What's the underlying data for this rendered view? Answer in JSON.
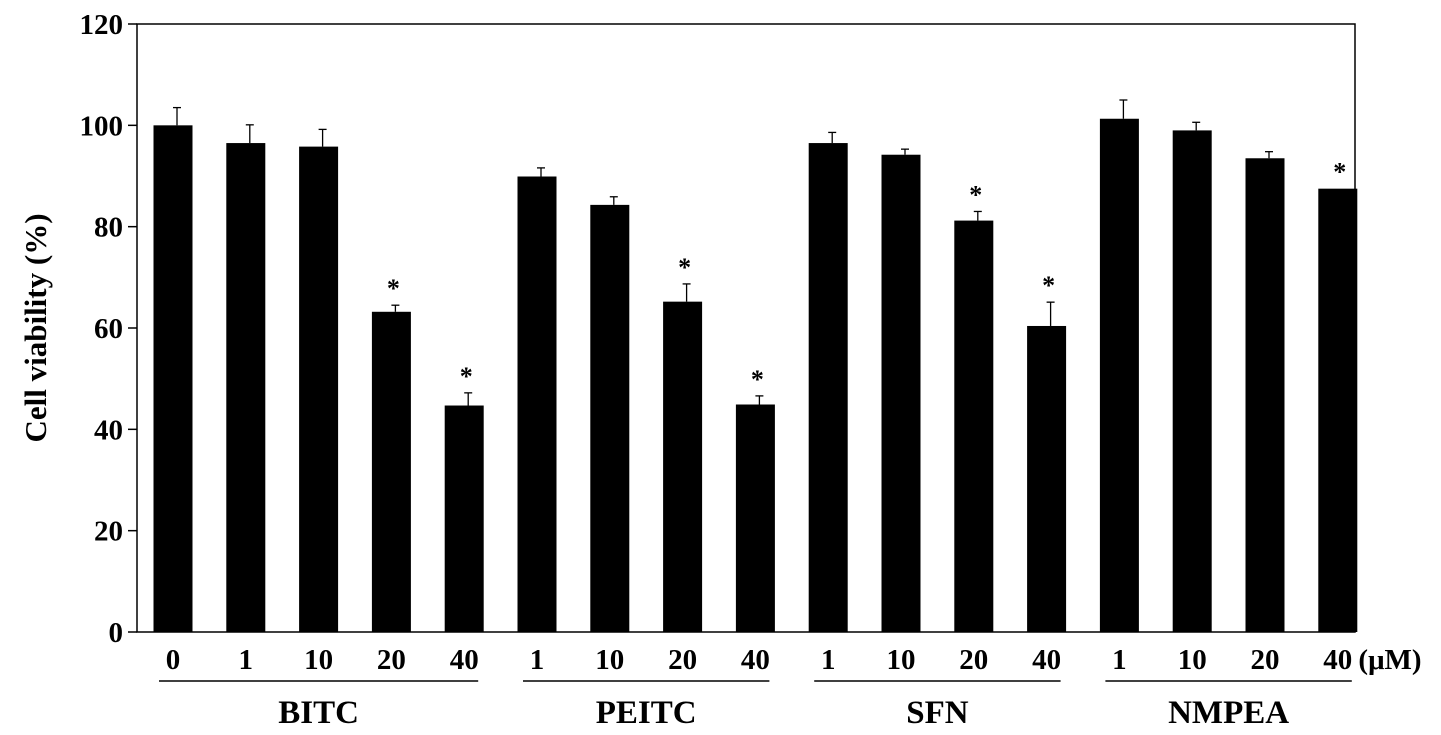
{
  "chart_data": {
    "type": "bar",
    "title": "",
    "ylabel": "Cell viability (%)",
    "xlabel": "",
    "x_unit_label": "(μM)",
    "ylim": [
      0,
      120
    ],
    "yticks": [
      "0",
      "20",
      "40",
      "60",
      "80",
      "100",
      "120"
    ],
    "grid": false,
    "legend": "none",
    "bar_color": "#000000",
    "groups": [
      {
        "name": "BITC",
        "bars": [
          {
            "dose": "0",
            "value": 100,
            "error": 3.5,
            "significant": false
          },
          {
            "dose": "1",
            "value": 96.5,
            "error": 3.6,
            "significant": false
          },
          {
            "dose": "10",
            "value": 95.8,
            "error": 3.4,
            "significant": false
          },
          {
            "dose": "20",
            "value": 63.2,
            "error": 1.3,
            "significant": true
          },
          {
            "dose": "40",
            "value": 44.7,
            "error": 2.5,
            "significant": true
          }
        ]
      },
      {
        "name": "PEITC",
        "bars": [
          {
            "dose": "1",
            "value": 89.9,
            "error": 1.7,
            "significant": false
          },
          {
            "dose": "10",
            "value": 84.3,
            "error": 1.6,
            "significant": false
          },
          {
            "dose": "20",
            "value": 65.2,
            "error": 3.5,
            "significant": true
          },
          {
            "dose": "40",
            "value": 44.9,
            "error": 1.7,
            "significant": true
          }
        ]
      },
      {
        "name": "SFN",
        "bars": [
          {
            "dose": "1",
            "value": 96.5,
            "error": 2.1,
            "significant": false
          },
          {
            "dose": "10",
            "value": 94.2,
            "error": 1.1,
            "significant": false
          },
          {
            "dose": "20",
            "value": 81.2,
            "error": 1.8,
            "significant": true
          },
          {
            "dose": "40",
            "value": 60.4,
            "error": 4.7,
            "significant": true
          }
        ]
      },
      {
        "name": "NMPEA",
        "bars": [
          {
            "dose": "1",
            "value": 101.3,
            "error": 3.7,
            "significant": false
          },
          {
            "dose": "10",
            "value": 99.0,
            "error": 1.6,
            "significant": false
          },
          {
            "dose": "20",
            "value": 93.5,
            "error": 1.3,
            "significant": false
          },
          {
            "dose": "40",
            "value": 87.5,
            "error": 0,
            "significant": true
          }
        ]
      }
    ],
    "significance_marker": "*"
  }
}
